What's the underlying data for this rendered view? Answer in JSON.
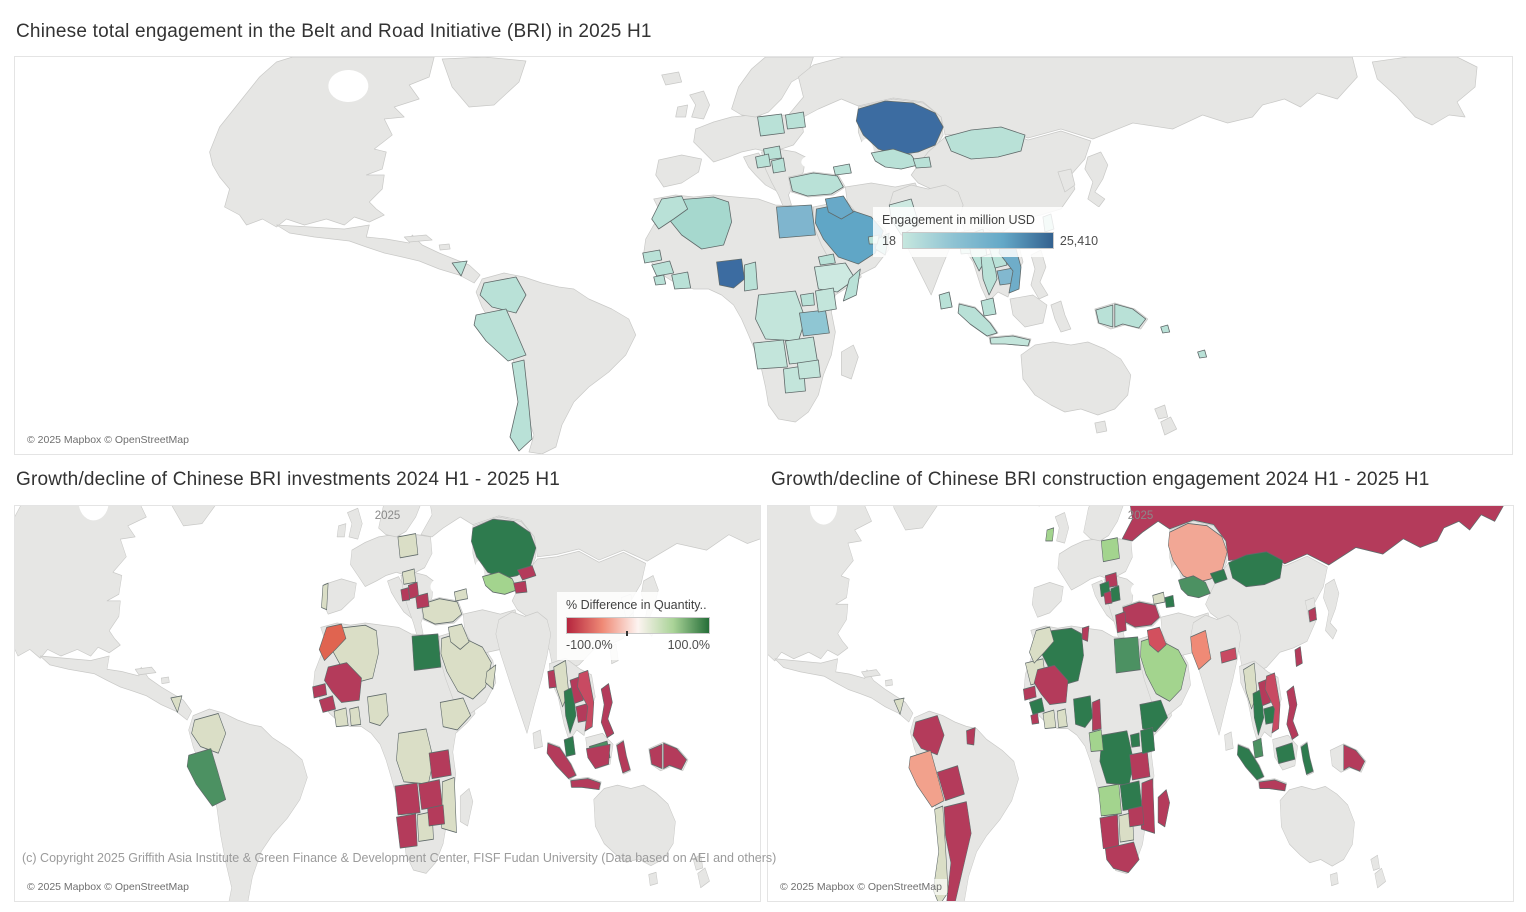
{
  "attribution": "© 2025 Mapbox © OpenStreetMap",
  "footer_copyright": "(c) Copyright 2025 Griffith Asia Institute & Green Finance & Development Center, FISF Fudan University (Data based on AEI and others)",
  "chart_data": [
    {
      "type": "heatmap",
      "subtype": "choropleth-world-map",
      "title": "Chinese total engagement in the Belt and Road Initiative (BRI) in 2025 H1",
      "legend": {
        "title": "Engagement in million USD",
        "min_label": "18",
        "max_label": "25,410",
        "gradient": [
          "#c6e7de",
          "#8fc3d3",
          "#64a8c7",
          "#33618f"
        ]
      },
      "value_range_million_usd": [
        18,
        25410
      ],
      "countries": {
        "kazakhstan": "#3c6ca1",
        "nigeria": "#3c6ca1",
        "saudi-arabia": "#60a6c6",
        "egypt": "#7fb5ce",
        "iraq": "#68a9c8",
        "vietnam": "#6fadc9",
        "cambodia": "#82b8cf",
        "tanzania": "#8fc6d3",
        "algeria": "#a6d8ce",
        "oman": "#a6d8ce",
        "mongolia": "#b9e1d7",
        "morocco": "#b9e1d7",
        "turkey": "#b9e1d7",
        "poland": "#b9e1d7",
        "hungary": "#b9e1d7",
        "croatia": "#b9e1d7",
        "serbia": "#b9e1d7",
        "belarus": "#b9e1d7",
        "georgia": "#b9e1d7",
        "uzbekistan": "#b9e1d7",
        "tajikistan": "#b9e1d7",
        "uae": "#b9e1d7",
        "eritrea": "#b9e1d7",
        "somalia": "#b9e1d7",
        "uganda": "#b9e1d7",
        "ethiopia": "#cde9e1",
        "kenya": "#c3e5db",
        "drc": "#c3e5db",
        "angola": "#c3e5db",
        "zambia": "#c3e5db",
        "zimbabwe": "#c3e5db",
        "botswana": "#c3e5db",
        "senegal": "#b9e1d7",
        "guinea": "#b9e1d7",
        "sierra-leone": "#b9e1d7",
        "cote-divoire": "#b9e1d7",
        "cameroon": "#b9e1d7",
        "nicaragua": "#b9e1d7",
        "colombia": "#b9e1d7",
        "peru": "#b9e1d7",
        "chile": "#b9e1d7",
        "pakistan": "#cde9e1",
        "bangladesh": "#b9e1d7",
        "myanmar": "#b9e1d7",
        "thailand": "#b9e1d7",
        "laos": "#b9e1d7",
        "sri-lanka": "#b9e1d7",
        "taiwan": "#b9e1d7",
        "malaysia": "#b9e1d7",
        "sumatra": "#b9e1d7",
        "java": "#c3e5db",
        "papua-west": "#b9e1d7",
        "png": "#b9e1d7",
        "fiji": "#b9e1d7",
        "solomon": "#b9e1d7"
      }
    },
    {
      "type": "heatmap",
      "subtype": "choropleth-world-map",
      "title": "Growth/decline of Chinese BRI investments 2024 H1 - 2025 H1",
      "year_label": "2025",
      "legend": {
        "title": "% Difference in Quantity..",
        "min_label": "-100.0%",
        "max_label": "100.0%",
        "gradient": [
          "#b5253e",
          "#ef8a76",
          "#fdf4f1",
          "#a9d397",
          "#256e38"
        ]
      },
      "value_range_percent": [
        -100,
        100
      ],
      "countries": {
        "kazakhstan": "#2e7b4e",
        "egypt": "#2e7b4e",
        "thailand": "#2e7b4e",
        "malaysia": "#2e7b4e",
        "malaysia-east": "#4c9162",
        "peru": "#4c9162",
        "uzbekistan": "#a3d48e",
        "poland": "#dadec6",
        "hungary": "#dadec6",
        "turkey": "#dadec6",
        "georgia": "#dadec6",
        "algeria": "#dadec6",
        "saudi-arabia": "#dadec6",
        "oman": "#dadec6",
        "colombia": "#dadec6",
        "nigeria": "#dadec6",
        "drc": "#dadec6",
        "myanmar": "#dadec6",
        "portugal": "#dadec6",
        "iraq": "#dadec6",
        "ethiopia": "#dadec6",
        "cote-divoire": "#dadec6",
        "ghana": "#dadec6",
        "botswana": "#dadec6",
        "mozambique": "#dadec6",
        "nicaragua": "#dadec6",
        "serbia": "#b43b5b",
        "bosnia": "#b43b5b",
        "bulgaria": "#b43b5b",
        "kyrgyzstan": "#b43b5b",
        "tajikistan": "#b43b5b",
        "mali": "#b43b5b",
        "senegal": "#b43b5b",
        "guinea": "#b43b5b",
        "angola": "#b43b5b",
        "namibia": "#b43b5b",
        "zambia": "#b43b5b",
        "zimbabwe": "#b43b5b",
        "tanzania": "#b43b5b",
        "cambodia": "#b43b5b",
        "philippines": "#b43b5b",
        "kalimantan": "#b43b5b",
        "sumatra": "#b43b5b",
        "java": "#b43b5b",
        "sulawesi": "#b43b5b",
        "papua-west": "#b43b5b",
        "png": "#b43b5b",
        "laos": "#b43b5b",
        "bangladesh": "#b43b5b",
        "vietnam": "#c84a62",
        "morocco": "#e06450"
      }
    },
    {
      "type": "heatmap",
      "subtype": "choropleth-world-map",
      "title": "Growth/decline of Chinese BRI construction engagement 2024 H1 - 2025 H1",
      "year_label": "2025",
      "value_range_percent": [
        -100,
        100
      ],
      "countries": {
        "russia": "#b43b5b",
        "turkey": "#b43b5b",
        "hungary": "#b43b5b",
        "bosnia": "#b43b5b",
        "greece": "#b43b5b",
        "tunisia": "#b43b5b",
        "mali": "#b43b5b",
        "senegal": "#b43b5b",
        "sierra-leone": "#b43b5b",
        "cameroon": "#b43b5b",
        "namibia": "#b43b5b",
        "south-africa": "#b43b5b",
        "zimbabwe": "#b43b5b",
        "mozambique": "#b43b5b",
        "madagascar": "#b43b5b",
        "tanzania": "#b43b5b",
        "colombia": "#b43b5b",
        "bolivia": "#b43b5b",
        "argentina": "#b43b5b",
        "guyana": "#b43b5b",
        "south-korea": "#b43b5b",
        "taiwan": "#b43b5b",
        "laos": "#b43b5b",
        "philippines": "#b43b5b",
        "java": "#b43b5b",
        "png": "#b43b5b",
        "vietnam": "#c84a62",
        "nepal": "#c84a62",
        "iraq": "#d2505e",
        "kazakhstan": "#f2a795",
        "pakistan": "#ef8a76",
        "peru": "#f2a18c",
        "mongolia": "#2e7b4e",
        "kyrgyzstan": "#2e7b4e",
        "serbia": "#2e7b4e",
        "croatia": "#2e7b4e",
        "azerbaijan": "#2e7b4e",
        "algeria": "#2e7b4e",
        "nigeria": "#2e7b4e",
        "ethiopia": "#2e7b4e",
        "kenya": "#2e7b4e",
        "drc": "#2e7b4e",
        "zambia": "#2e7b4e",
        "guinea": "#2e7b4e",
        "thailand": "#2e7b4e",
        "cambodia": "#2e7b4e",
        "malaysia-east": "#2e7b4e",
        "sumatra": "#2e7b4e",
        "sulawesi": "#2e7b4e",
        "uganda": "#2e7b4e",
        "egypt": "#4c9162",
        "uzbekistan": "#4c9162",
        "malaysia": "#4c9162",
        "poland": "#a3d48e",
        "saudi-arabia": "#a3d48e",
        "angola": "#a3d48e",
        "congo": "#a3d48e",
        "ireland": "#a3d48e",
        "morocco": "#dadec6",
        "mauritania": "#dadec6",
        "cote-divoire": "#dadec6",
        "ghana": "#dadec6",
        "botswana": "#dadec6",
        "chile": "#dadec6",
        "nicaragua": "#dadec6",
        "georgia": "#dadec6",
        "myanmar": "#dadec6"
      }
    }
  ]
}
